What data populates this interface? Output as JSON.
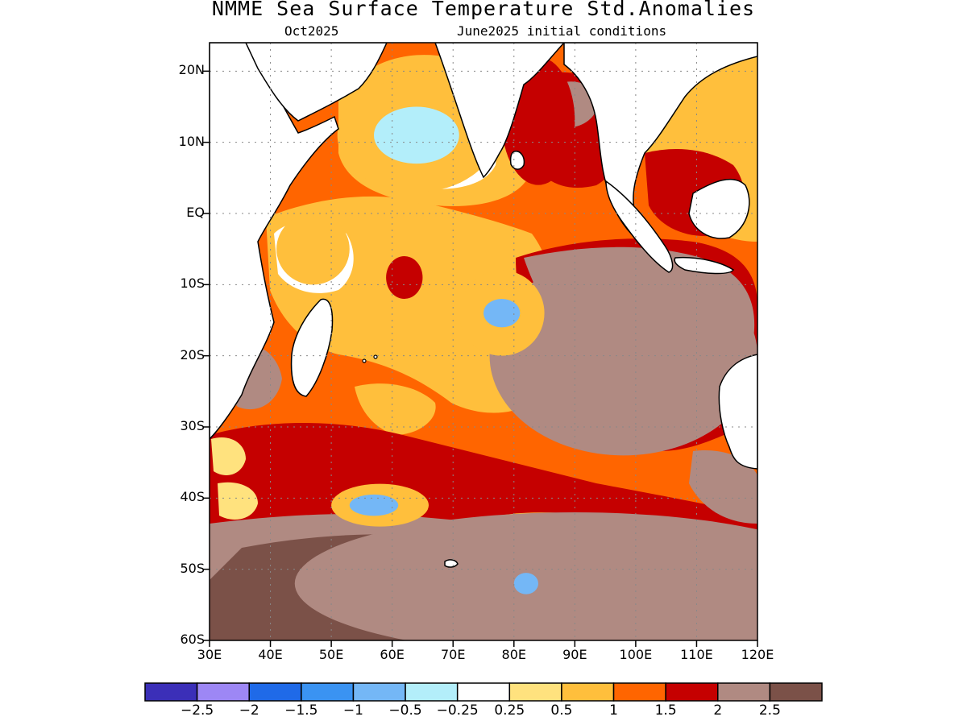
{
  "header": {
    "title": "NMME Sea Surface Temperature Std.Anomalies",
    "valid_month": "Oct2025",
    "init": "June2025 initial conditions"
  },
  "map": {
    "lat_ticks": [
      "20N",
      "10N",
      "EQ",
      "10S",
      "20S",
      "30S",
      "40S",
      "50S",
      "60S"
    ],
    "lon_ticks": [
      "30E",
      "40E",
      "50E",
      "60E",
      "70E",
      "80E",
      "90E",
      "100E",
      "110E",
      "120E"
    ],
    "lat_range": [
      -60,
      24
    ],
    "lon_range": [
      30,
      120
    ],
    "land_color": "#ffffff",
    "coastline_color": "#000000"
  },
  "colorbar": {
    "colors": [
      "#3b2fb8",
      "#9d87f5",
      "#1f6ae8",
      "#3a93f2",
      "#74b7f6",
      "#b3eefa",
      "#ffffff",
      "#ffe27e",
      "#ffbf3c",
      "#ff6500",
      "#c50000",
      "#b08a82",
      "#7b5148"
    ],
    "labels": [
      "−2.5",
      "−2",
      "−1.5",
      "−1",
      "−0.5",
      "−0.25",
      "0.25",
      "0.5",
      "1",
      "1.5",
      "2",
      "2.5"
    ]
  },
  "anomaly_regions": [
    {
      "level": 11,
      "lon": 90,
      "lat": -52,
      "rx": 46,
      "ry": 10
    },
    {
      "level": 11,
      "lon": 98,
      "lat": -20,
      "rx": 22,
      "ry": 14
    },
    {
      "level": 10,
      "lon": 84,
      "lat": 13,
      "rx": 6,
      "ry": 9
    },
    {
      "level": 10,
      "lon": 62,
      "lat": -9,
      "rx": 3,
      "ry": 3
    },
    {
      "level": 8,
      "lon": 78,
      "lat": -14,
      "rx": 7,
      "ry": 6
    },
    {
      "level": 8,
      "lon": 47,
      "lat": -5,
      "rx": 6,
      "ry": 5
    },
    {
      "level": 8,
      "lon": 64,
      "lat": 11,
      "rx": 13,
      "ry": 8
    },
    {
      "level": 8,
      "lon": 58,
      "lat": -41,
      "rx": 8,
      "ry": 3
    },
    {
      "level": 5,
      "lon": 64,
      "lat": 11,
      "rx": 7,
      "ry": 4
    },
    {
      "level": 4,
      "lon": 78,
      "lat": -14,
      "rx": 3,
      "ry": 2
    },
    {
      "level": 4,
      "lon": 57,
      "lat": -41,
      "rx": 4,
      "ry": 1.5
    },
    {
      "level": 4,
      "lon": 82,
      "lat": -52,
      "rx": 2,
      "ry": 1.5
    }
  ]
}
